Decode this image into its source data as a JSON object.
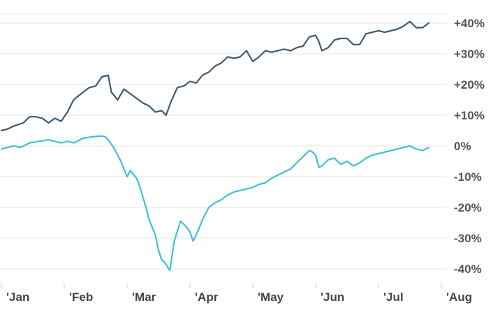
{
  "chart_data": {
    "type": "line",
    "title": "",
    "xlabel": "",
    "ylabel": "",
    "x_tick_labels": [
      "'Jan",
      "'Feb",
      "'Mar",
      "'Apr",
      "'May",
      "'Jun",
      "'Jul",
      "'Aug"
    ],
    "y_ticks": [
      40,
      30,
      20,
      10,
      0,
      -10,
      -20,
      -30,
      -40
    ],
    "y_tick_labels": [
      "+40%",
      "+30%",
      "+20%",
      "+10%",
      "0%",
      "-10%",
      "-20%",
      "-30%",
      "-40%"
    ],
    "ylim": [
      -43,
      44
    ],
    "xlim": [
      0,
      7.1
    ],
    "grid": true,
    "legend": "none",
    "series": [
      {
        "color": "#3d5a73",
        "points": [
          [
            0,
            5
          ],
          [
            0.1,
            5.5
          ],
          [
            0.2,
            6.5
          ],
          [
            0.35,
            7.5
          ],
          [
            0.45,
            9.5
          ],
          [
            0.55,
            9.5
          ],
          [
            0.65,
            9
          ],
          [
            0.75,
            7.5
          ],
          [
            0.85,
            9
          ],
          [
            0.95,
            8
          ],
          [
            1.05,
            11
          ],
          [
            1.15,
            15
          ],
          [
            1.3,
            17.5
          ],
          [
            1.4,
            19
          ],
          [
            1.5,
            19.5
          ],
          [
            1.6,
            22.5
          ],
          [
            1.7,
            23
          ],
          [
            1.75,
            17.5
          ],
          [
            1.85,
            15
          ],
          [
            1.95,
            18.5
          ],
          [
            2.05,
            17
          ],
          [
            2.15,
            15.5
          ],
          [
            2.25,
            14
          ],
          [
            2.35,
            13
          ],
          [
            2.45,
            11
          ],
          [
            2.55,
            11.5
          ],
          [
            2.62,
            10
          ],
          [
            2.7,
            14.5
          ],
          [
            2.8,
            19
          ],
          [
            2.9,
            19.5
          ],
          [
            3.0,
            21
          ],
          [
            3.1,
            20.5
          ],
          [
            3.2,
            23
          ],
          [
            3.3,
            24
          ],
          [
            3.4,
            26
          ],
          [
            3.5,
            27
          ],
          [
            3.6,
            29
          ],
          [
            3.7,
            28.5
          ],
          [
            3.8,
            29
          ],
          [
            3.9,
            31
          ],
          [
            4.0,
            27.5
          ],
          [
            4.1,
            29
          ],
          [
            4.2,
            31
          ],
          [
            4.3,
            30.5
          ],
          [
            4.4,
            31
          ],
          [
            4.5,
            31.5
          ],
          [
            4.6,
            31
          ],
          [
            4.7,
            32
          ],
          [
            4.8,
            32.5
          ],
          [
            4.9,
            35.5
          ],
          [
            5.0,
            36
          ],
          [
            5.05,
            34
          ],
          [
            5.1,
            31
          ],
          [
            5.2,
            32
          ],
          [
            5.3,
            34.5
          ],
          [
            5.4,
            35
          ],
          [
            5.5,
            35
          ],
          [
            5.6,
            33
          ],
          [
            5.7,
            33
          ],
          [
            5.8,
            36.5
          ],
          [
            5.9,
            37
          ],
          [
            6.0,
            37.5
          ],
          [
            6.1,
            37
          ],
          [
            6.2,
            37.5
          ],
          [
            6.3,
            38
          ],
          [
            6.4,
            39
          ],
          [
            6.5,
            40.5
          ],
          [
            6.6,
            38.5
          ],
          [
            6.7,
            38.5
          ],
          [
            6.8,
            40
          ]
        ]
      },
      {
        "color": "#3fc1d6",
        "points": [
          [
            0,
            -1
          ],
          [
            0.1,
            -0.5
          ],
          [
            0.2,
            0
          ],
          [
            0.3,
            -0.5
          ],
          [
            0.45,
            1
          ],
          [
            0.6,
            1.5
          ],
          [
            0.75,
            2
          ],
          [
            0.85,
            1.5
          ],
          [
            0.95,
            1
          ],
          [
            1.05,
            1.5
          ],
          [
            1.15,
            1
          ],
          [
            1.3,
            2.5
          ],
          [
            1.45,
            3
          ],
          [
            1.6,
            3.2
          ],
          [
            1.65,
            3
          ],
          [
            1.7,
            2
          ],
          [
            1.8,
            -1
          ],
          [
            1.9,
            -5
          ],
          [
            2.0,
            -10
          ],
          [
            2.05,
            -8
          ],
          [
            2.15,
            -10.5
          ],
          [
            2.2,
            -13
          ],
          [
            2.3,
            -20
          ],
          [
            2.35,
            -24
          ],
          [
            2.45,
            -29
          ],
          [
            2.5,
            -34
          ],
          [
            2.55,
            -37
          ],
          [
            2.6,
            -38
          ],
          [
            2.68,
            -40.5
          ],
          [
            2.75,
            -31
          ],
          [
            2.85,
            -24.5
          ],
          [
            2.95,
            -26.5
          ],
          [
            3.0,
            -28
          ],
          [
            3.05,
            -31
          ],
          [
            3.1,
            -29
          ],
          [
            3.2,
            -24
          ],
          [
            3.3,
            -20
          ],
          [
            3.4,
            -18.5
          ],
          [
            3.5,
            -17.5
          ],
          [
            3.6,
            -16
          ],
          [
            3.7,
            -15
          ],
          [
            3.8,
            -14.5
          ],
          [
            3.9,
            -14
          ],
          [
            4.0,
            -13.5
          ],
          [
            4.1,
            -12.5
          ],
          [
            4.2,
            -12
          ],
          [
            4.3,
            -10.5
          ],
          [
            4.4,
            -9.5
          ],
          [
            4.5,
            -8.5
          ],
          [
            4.6,
            -7.5
          ],
          [
            4.7,
            -5.5
          ],
          [
            4.8,
            -3.5
          ],
          [
            4.9,
            -1.5
          ],
          [
            4.95,
            -2
          ],
          [
            5.0,
            -3
          ],
          [
            5.05,
            -7
          ],
          [
            5.1,
            -6.5
          ],
          [
            5.2,
            -4.5
          ],
          [
            5.3,
            -4
          ],
          [
            5.4,
            -6
          ],
          [
            5.5,
            -5
          ],
          [
            5.6,
            -6.5
          ],
          [
            5.7,
            -5.5
          ],
          [
            5.8,
            -4
          ],
          [
            5.9,
            -3
          ],
          [
            6.0,
            -2.5
          ],
          [
            6.1,
            -2
          ],
          [
            6.2,
            -1.5
          ],
          [
            6.3,
            -1
          ],
          [
            6.4,
            -0.5
          ],
          [
            6.5,
            0
          ],
          [
            6.6,
            -1
          ],
          [
            6.7,
            -1.5
          ],
          [
            6.8,
            -0.5
          ]
        ]
      }
    ]
  }
}
